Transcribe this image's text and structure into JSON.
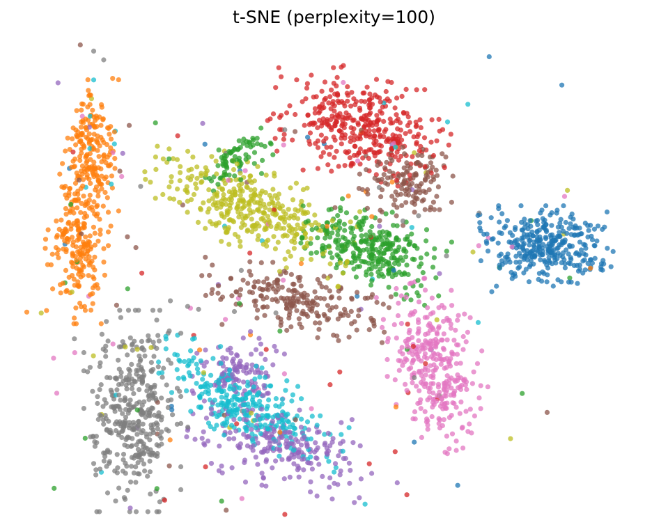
{
  "chart_data": {
    "type": "scatter",
    "title": "t-SNE (perplexity=100)",
    "axes_visible": false,
    "grid": false,
    "legend": "none",
    "xlim": [
      -60,
      60
    ],
    "ylim": [
      -42,
      42
    ],
    "point_alpha": 0.75,
    "series": [
      {
        "color": "#1f77b4",
        "clusters": [
          {
            "cx": 42,
            "cy": 5,
            "sx": 5.5,
            "sy": 3.2,
            "n": 330,
            "rot": 0
          }
        ]
      },
      {
        "color": "#ff7f0e",
        "clusters": [
          {
            "cx": -48,
            "cy": 22,
            "sx": 2.2,
            "sy": 5.5,
            "n": 190,
            "rot": 0
          },
          {
            "cx": -51,
            "cy": 6,
            "sx": 2.6,
            "sy": 6.0,
            "n": 210,
            "rot": 0
          }
        ]
      },
      {
        "color": "#2ca02c",
        "clusters": [
          {
            "cx": 8,
            "cy": 5,
            "sx": 6.0,
            "sy": 3.0,
            "n": 300,
            "rot": -15
          },
          {
            "cx": -20,
            "cy": 21,
            "sx": 3.2,
            "sy": 1.6,
            "n": 75,
            "rot": 35
          }
        ]
      },
      {
        "color": "#d62728",
        "clusters": [
          {
            "cx": 5,
            "cy": 27,
            "sx": 7.5,
            "sy": 4.2,
            "n": 370,
            "rot": -12
          }
        ]
      },
      {
        "color": "#9467bd",
        "clusters": [
          {
            "cx": -19,
            "cy": -17,
            "sx": 3.8,
            "sy": 3.0,
            "n": 110,
            "rot": 0
          },
          {
            "cx": -10,
            "cy": -30,
            "sx": 8.0,
            "sy": 3.3,
            "n": 230,
            "rot": -10
          }
        ]
      },
      {
        "color": "#8c564b",
        "clusters": [
          {
            "cx": -8,
            "cy": -4,
            "sx": 7.8,
            "sy": 2.4,
            "n": 210,
            "rot": -12
          },
          {
            "cx": 15,
            "cy": 17,
            "sx": 4.2,
            "sy": 3.0,
            "n": 130,
            "rot": 15
          }
        ]
      },
      {
        "color": "#e377c2",
        "clusters": [
          {
            "cx": 20,
            "cy": -16,
            "sx": 4.0,
            "sy": 6.5,
            "n": 320,
            "rot": 18
          }
        ]
      },
      {
        "color": "#7f7f7f",
        "clusters": [
          {
            "cx": -40,
            "cy": -24,
            "sx": 4.0,
            "sy": 7.5,
            "n": 380,
            "rot": 0
          }
        ]
      },
      {
        "color": "#bcbd22",
        "clusters": [
          {
            "cx": -17,
            "cy": 12,
            "sx": 9.0,
            "sy": 3.3,
            "n": 360,
            "rot": -22
          }
        ]
      },
      {
        "color": "#17becf",
        "clusters": [
          {
            "cx": -17,
            "cy": -23,
            "sx": 8.5,
            "sy": 3.0,
            "n": 300,
            "rot": -25
          }
        ]
      }
    ],
    "outlier_count": 220
  }
}
